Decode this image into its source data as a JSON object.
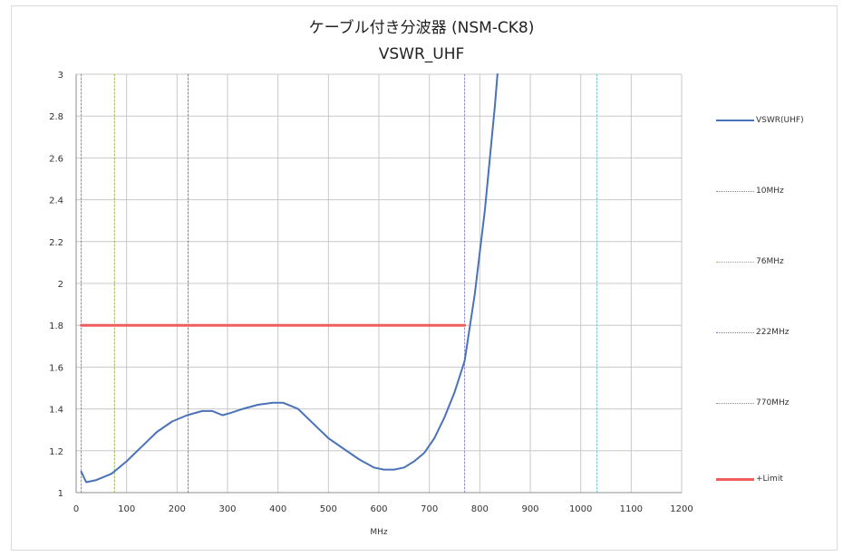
{
  "page": {
    "title_line1": "ケーブル付き分波器 (NSM-CK8)",
    "title_line2": "VSWR_UHF"
  },
  "chart_data": {
    "type": "line",
    "title": "ケーブル付き分波器 (NSM-CK8)",
    "subtitle": "VSWR_UHF",
    "xlabel": "MHz",
    "ylabel": "",
    "xlim": [
      0,
      1200
    ],
    "ylim": [
      1,
      3
    ],
    "xticks": [
      0,
      100,
      200,
      300,
      400,
      500,
      600,
      700,
      800,
      900,
      1000,
      1100,
      1200
    ],
    "yticks": [
      1,
      1.2,
      1.4,
      1.6,
      1.8,
      2,
      2.2,
      2.4,
      2.6,
      2.8,
      3
    ],
    "xtick_labels": [
      "0",
      "100",
      "200",
      "300",
      "400",
      "500",
      "600",
      "700",
      "800",
      "900",
      "1000",
      "1100",
      "1200"
    ],
    "ytick_labels": [
      "1",
      "1.2",
      "1.4",
      "1.6",
      "1.8",
      "2",
      "2.2",
      "2.4",
      "2.6",
      "2.8",
      "3"
    ],
    "grid": true,
    "legend_position": "right",
    "series": [
      {
        "name": "VSWR(UHF)",
        "color": "#4a72b8",
        "style": "solid",
        "x": [
          10,
          20,
          40,
          70,
          100,
          130,
          160,
          190,
          220,
          250,
          270,
          290,
          305,
          330,
          360,
          390,
          410,
          440,
          470,
          500,
          530,
          560,
          590,
          610,
          630,
          650,
          670,
          690,
          710,
          730,
          750,
          770,
          790,
          810,
          830,
          835
        ],
        "y": [
          1.1,
          1.05,
          1.06,
          1.09,
          1.15,
          1.22,
          1.29,
          1.34,
          1.37,
          1.39,
          1.39,
          1.37,
          1.38,
          1.4,
          1.42,
          1.43,
          1.43,
          1.4,
          1.33,
          1.26,
          1.21,
          1.16,
          1.12,
          1.11,
          1.11,
          1.12,
          1.15,
          1.19,
          1.26,
          1.36,
          1.48,
          1.63,
          1.95,
          2.35,
          2.85,
          3.0
        ]
      },
      {
        "name": "10MHz",
        "color": "#d46a6a",
        "style": "dotted",
        "x": [
          10,
          10
        ],
        "y": [
          1,
          3
        ]
      },
      {
        "name": "76MHz",
        "color": "#9bb24b",
        "style": "dotted",
        "x": [
          76,
          76
        ],
        "y": [
          1,
          3
        ]
      },
      {
        "name": "222MHz",
        "color": "#7b6fc2",
        "style": "dotted",
        "x": [
          222,
          222
        ],
        "y": [
          1,
          3
        ]
      },
      {
        "name": "770MHz",
        "color": "#8b87c6",
        "style": "dotted",
        "x": [
          770,
          770
        ],
        "y": [
          1,
          3
        ]
      },
      {
        "name": "+Limit",
        "color": "#f05d5d",
        "style": "solid-thick",
        "x": [
          10,
          770
        ],
        "y": [
          1.8,
          1.8
        ]
      }
    ],
    "unlabeled_series": [
      {
        "color": "#73c5d8",
        "style": "dotted",
        "x": [
          1032,
          1032
        ],
        "y": [
          1,
          3
        ]
      }
    ]
  },
  "legend": {
    "items": [
      {
        "label": "VSWR(UHF)",
        "color": "#4a72b8",
        "style": "solid"
      },
      {
        "label": "10MHz",
        "color": "#d46a6a",
        "style": "dotted"
      },
      {
        "label": "76MHz",
        "color": "#9bb24b",
        "style": "dotted"
      },
      {
        "label": "222MHz",
        "color": "#7b6fc2",
        "style": "dotted"
      },
      {
        "label": "770MHz",
        "color": "#8b87c6",
        "style": "dotted"
      },
      {
        "label": "+Limit",
        "color": "#f05d5d",
        "style": "solid-thick"
      }
    ]
  }
}
